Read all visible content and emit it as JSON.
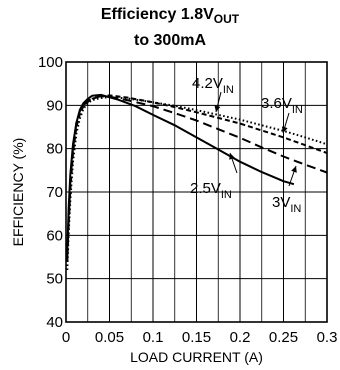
{
  "chart_data": {
    "type": "line",
    "title_line1": "Efficiency 1.8V",
    "title_line1_sub": "OUT",
    "title_line2": "to 300mA",
    "xlabel": "LOAD CURRENT (A)",
    "ylabel": "EFFICIENCY (%)",
    "xlim": [
      0,
      0.3
    ],
    "ylim": [
      40,
      100
    ],
    "x_ticks": [
      "0",
      "0.05",
      "0.1",
      "0.15",
      "0.2",
      "0.25",
      "0.3"
    ],
    "y_ticks": [
      "40",
      "50",
      "60",
      "70",
      "80",
      "90",
      "100"
    ],
    "grid": true,
    "series": [
      {
        "name": "2.5V",
        "name_sub": "IN",
        "style": "solid",
        "points": [
          [
            0.0015,
            56
          ],
          [
            0.003,
            66
          ],
          [
            0.005,
            74
          ],
          [
            0.008,
            81
          ],
          [
            0.012,
            86
          ],
          [
            0.016,
            89
          ],
          [
            0.02,
            90.5
          ],
          [
            0.025,
            91.5
          ],
          [
            0.03,
            92.2
          ],
          [
            0.04,
            92.4
          ],
          [
            0.06,
            91.3
          ],
          [
            0.08,
            89.8
          ],
          [
            0.1,
            87.8
          ],
          [
            0.125,
            85.4
          ],
          [
            0.15,
            82.6
          ],
          [
            0.175,
            79.8
          ],
          [
            0.2,
            77
          ],
          [
            0.225,
            74.6
          ],
          [
            0.25,
            72.5
          ],
          [
            0.262,
            71.8
          ]
        ]
      },
      {
        "name": "3V",
        "name_sub": "IN",
        "style": "long-dash",
        "points": [
          [
            0.0015,
            55
          ],
          [
            0.003,
            63
          ],
          [
            0.005,
            72
          ],
          [
            0.008,
            80
          ],
          [
            0.012,
            86
          ],
          [
            0.016,
            88.7
          ],
          [
            0.02,
            90
          ],
          [
            0.025,
            91
          ],
          [
            0.03,
            91.6
          ],
          [
            0.04,
            92.1
          ],
          [
            0.05,
            92
          ],
          [
            0.07,
            91.2
          ],
          [
            0.1,
            89.8
          ],
          [
            0.125,
            88.2
          ],
          [
            0.15,
            86.5
          ],
          [
            0.175,
            84.5
          ],
          [
            0.2,
            82.5
          ],
          [
            0.225,
            80.3
          ],
          [
            0.25,
            78.2
          ],
          [
            0.275,
            76.3
          ],
          [
            0.3,
            74.5
          ]
        ]
      },
      {
        "name": "3.6V",
        "name_sub": "IN",
        "style": "short-dash",
        "points": [
          [
            0.0015,
            54
          ],
          [
            0.003,
            62
          ],
          [
            0.005,
            70.5
          ],
          [
            0.008,
            79
          ],
          [
            0.012,
            85
          ],
          [
            0.016,
            88
          ],
          [
            0.02,
            89.8
          ],
          [
            0.025,
            90.8
          ],
          [
            0.03,
            91.5
          ],
          [
            0.04,
            92.1
          ],
          [
            0.05,
            92.3
          ],
          [
            0.07,
            91.8
          ],
          [
            0.1,
            90.7
          ],
          [
            0.125,
            89.6
          ],
          [
            0.15,
            88.4
          ],
          [
            0.175,
            87.1
          ],
          [
            0.2,
            85.8
          ],
          [
            0.225,
            84.2
          ],
          [
            0.25,
            82.6
          ],
          [
            0.275,
            80.8
          ],
          [
            0.3,
            79
          ]
        ]
      },
      {
        "name": "4.2V",
        "name_sub": "IN",
        "style": "dotted",
        "points": [
          [
            0.0015,
            52
          ],
          [
            0.003,
            60
          ],
          [
            0.005,
            68
          ],
          [
            0.008,
            77
          ],
          [
            0.012,
            83.5
          ],
          [
            0.016,
            87
          ],
          [
            0.02,
            89.2
          ],
          [
            0.025,
            90.5
          ],
          [
            0.03,
            91.2
          ],
          [
            0.04,
            91.7
          ],
          [
            0.05,
            91.9
          ],
          [
            0.07,
            91.6
          ],
          [
            0.1,
            90.7
          ],
          [
            0.125,
            89.9
          ],
          [
            0.15,
            88.9
          ],
          [
            0.175,
            87.8
          ],
          [
            0.2,
            86.7
          ],
          [
            0.225,
            85.4
          ],
          [
            0.25,
            84.1
          ],
          [
            0.275,
            82.6
          ],
          [
            0.3,
            81
          ]
        ]
      }
    ],
    "annotations": [
      {
        "series": "4.2V"
      },
      {
        "series": "3.6V"
      },
      {
        "series": "2.5V"
      },
      {
        "series": "3V"
      }
    ]
  }
}
